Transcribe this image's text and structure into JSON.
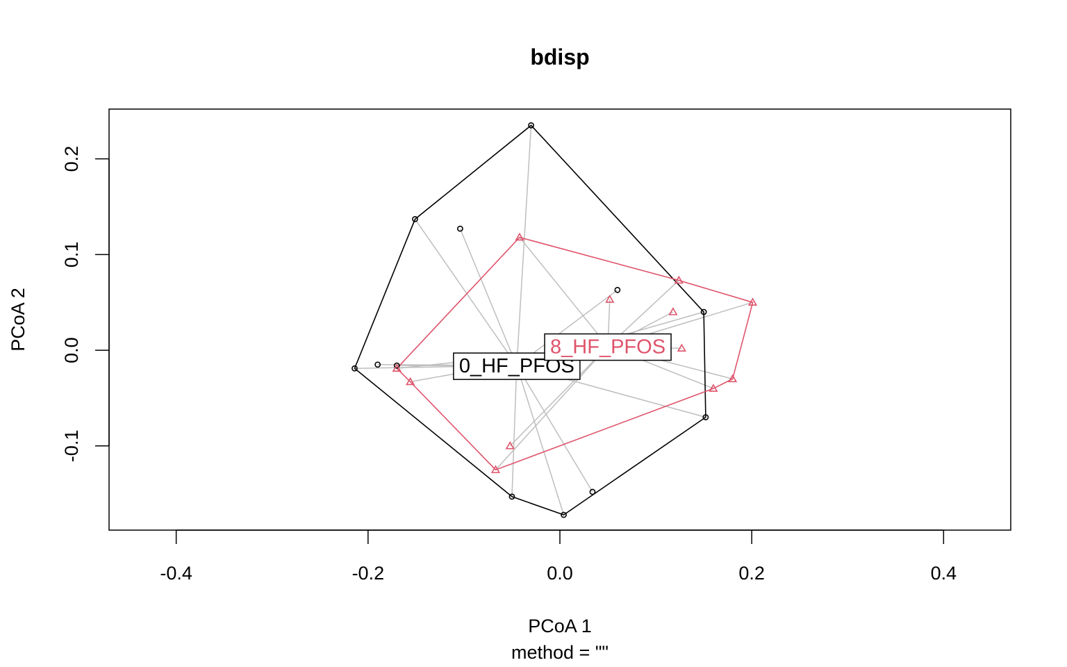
{
  "chart_data": {
    "type": "scatter",
    "title": "bdisp",
    "xlabel": "PCoA 1",
    "sublabel": "method = \"\"",
    "ylabel": "PCoA 2",
    "xlim": [
      -0.47,
      0.47
    ],
    "ylim": [
      -0.188,
      0.252
    ],
    "xticks": [
      -0.4,
      -0.2,
      0.0,
      0.2,
      0.4
    ],
    "xtick_labels": [
      "-0.4",
      "-0.2",
      "0.0",
      "0.2",
      "0.4"
    ],
    "yticks": [
      -0.1,
      0.0,
      0.1,
      0.2
    ],
    "ytick_labels": [
      "-0.1",
      "0.0",
      "0.1",
      "0.2"
    ],
    "grid": false,
    "series": [
      {
        "name": "0_HF_PFOS",
        "color": "#000000",
        "marker": "circle",
        "centroid": [
          -0.045,
          -0.016
        ],
        "points": [
          [
            -0.03,
            0.235
          ],
          [
            -0.151,
            0.137
          ],
          [
            -0.104,
            0.127
          ],
          [
            -0.214,
            -0.019
          ],
          [
            -0.19,
            -0.015
          ],
          [
            -0.17,
            -0.016
          ],
          [
            0.06,
            0.063
          ],
          [
            0.15,
            0.04
          ],
          [
            0.152,
            -0.07
          ],
          [
            0.034,
            -0.148
          ],
          [
            0.004,
            -0.172
          ],
          [
            -0.05,
            -0.153
          ]
        ],
        "hull_order": [
          0,
          7,
          8,
          10,
          11,
          3,
          1
        ]
      },
      {
        "name": "8_HF_PFOS",
        "color": "#DF536B",
        "marker": "triangle",
        "centroid": [
          0.05,
          0.004
        ],
        "points": [
          [
            -0.042,
            0.118
          ],
          [
            0.124,
            0.073
          ],
          [
            0.201,
            0.05
          ],
          [
            0.052,
            0.053
          ],
          [
            0.118,
            0.04
          ],
          [
            0.127,
            0.002
          ],
          [
            0.18,
            -0.03
          ],
          [
            0.16,
            -0.04
          ],
          [
            -0.17,
            -0.019
          ],
          [
            -0.156,
            -0.033
          ],
          [
            -0.052,
            -0.1
          ],
          [
            -0.067,
            -0.125
          ]
        ],
        "hull_order": [
          0,
          1,
          2,
          6,
          7,
          11,
          9,
          8
        ]
      }
    ],
    "spoke_color": "#BEBEBE"
  }
}
